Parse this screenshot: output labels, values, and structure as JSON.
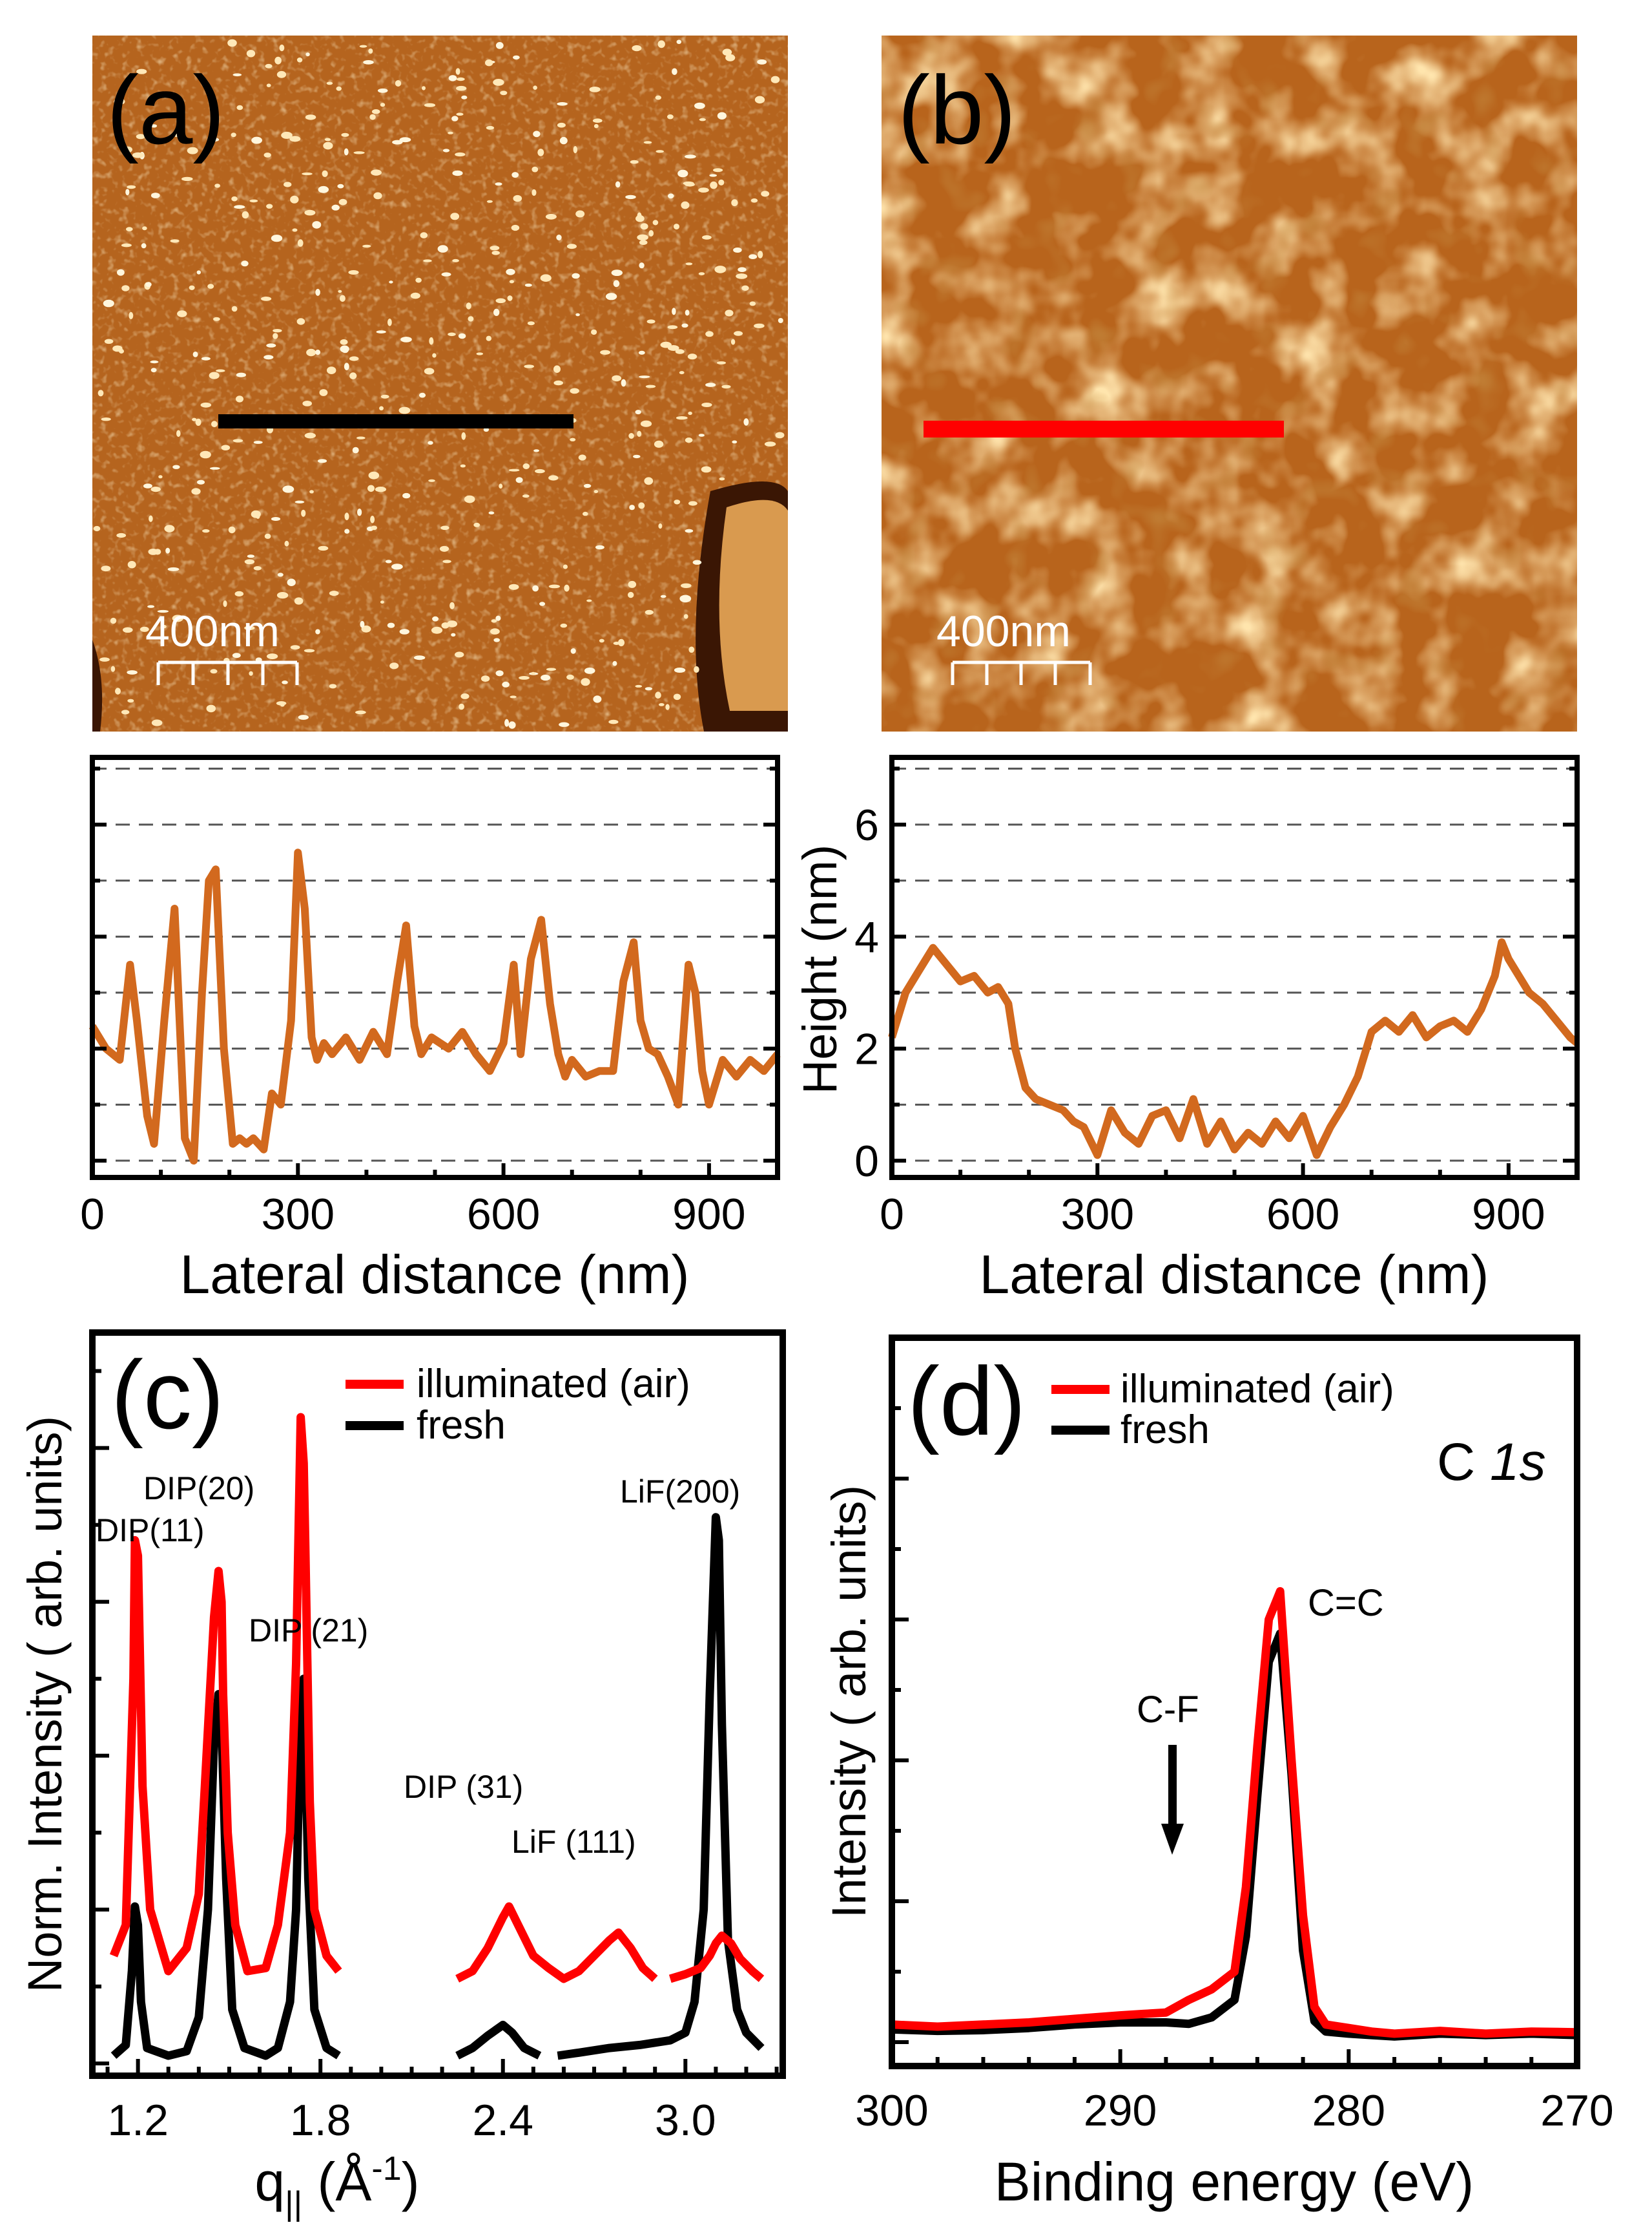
{
  "figure": {
    "panel_labels": {
      "a": "(a)",
      "b": "(b)",
      "c": "(c)",
      "d": "(d)"
    },
    "colors": {
      "profile": "#d2691e",
      "illuminated": "#ff0000",
      "fresh": "#000000",
      "grid": "#555555"
    }
  },
  "chart_data": [
    {
      "id": "a",
      "type": "image",
      "scale_bar_label": "400nm",
      "line_color": "#000000"
    },
    {
      "id": "b",
      "type": "image",
      "scale_bar_label": "400nm",
      "line_color": "#ff0000"
    },
    {
      "id": "profile_a",
      "type": "line",
      "xlabel": "Lateral distance (nm)",
      "ylabel": "",
      "xlim": [
        0,
        1000
      ],
      "ylim": [
        -0.3,
        7.2
      ],
      "xticks": [
        0,
        300,
        600,
        900
      ],
      "yticks": [],
      "grid_y": [
        0,
        1,
        2,
        3,
        4,
        5,
        6,
        7
      ],
      "series": [
        {
          "color": "#d2691e",
          "x": [
            0,
            20,
            40,
            55,
            65,
            80,
            90,
            105,
            120,
            135,
            148,
            160,
            170,
            180,
            192,
            205,
            215,
            225,
            235,
            250,
            262,
            275,
            290,
            300,
            310,
            320,
            328,
            338,
            350,
            370,
            390,
            410,
            430,
            445,
            458,
            470,
            480,
            495,
            520,
            540,
            560,
            580,
            600,
            615,
            625,
            640,
            655,
            668,
            680,
            690,
            700,
            720,
            740,
            760,
            775,
            790,
            800,
            812,
            825,
            840,
            855,
            870,
            880,
            890,
            900,
            920,
            940,
            960,
            980,
            1000
          ],
          "y": [
            2.4,
            2.0,
            1.8,
            3.5,
            2.5,
            0.8,
            0.3,
            2.5,
            4.5,
            0.4,
            0.0,
            3.0,
            5.0,
            5.2,
            2.0,
            0.3,
            0.4,
            0.3,
            0.4,
            0.2,
            1.2,
            1.0,
            2.5,
            5.5,
            4.5,
            2.2,
            1.8,
            2.1,
            1.9,
            2.2,
            1.8,
            2.3,
            1.9,
            3.2,
            4.2,
            2.4,
            1.9,
            2.2,
            2.0,
            2.3,
            1.9,
            1.6,
            2.1,
            3.5,
            1.9,
            3.6,
            4.3,
            2.8,
            1.9,
            1.5,
            1.8,
            1.5,
            1.6,
            1.6,
            3.2,
            3.9,
            2.5,
            2.0,
            1.9,
            1.5,
            1.0,
            3.5,
            3.0,
            1.6,
            1.0,
            1.8,
            1.5,
            1.8,
            1.6,
            1.9
          ]
        }
      ]
    },
    {
      "id": "profile_b",
      "type": "line",
      "xlabel": "Lateral distance (nm)",
      "ylabel": "Height (nm)",
      "xlim": [
        0,
        1000
      ],
      "ylim": [
        -0.3,
        7.2
      ],
      "xticks": [
        0,
        300,
        600,
        900
      ],
      "yticks": [
        0,
        2,
        4,
        6
      ],
      "grid_y": [
        0,
        1,
        2,
        3,
        4,
        5,
        6,
        7
      ],
      "series": [
        {
          "color": "#d2691e",
          "x": [
            0,
            20,
            40,
            60,
            80,
            100,
            120,
            140,
            155,
            170,
            180,
            195,
            210,
            230,
            250,
            265,
            280,
            300,
            320,
            340,
            360,
            380,
            400,
            420,
            440,
            460,
            480,
            500,
            520,
            540,
            560,
            580,
            600,
            620,
            640,
            660,
            680,
            700,
            720,
            740,
            760,
            780,
            800,
            820,
            840,
            860,
            880,
            890,
            900,
            915,
            930,
            950,
            970,
            990,
            1000
          ],
          "y": [
            2.2,
            3.0,
            3.4,
            3.8,
            3.5,
            3.2,
            3.3,
            3.0,
            3.1,
            2.8,
            2.0,
            1.3,
            1.1,
            1.0,
            0.9,
            0.7,
            0.6,
            0.1,
            0.9,
            0.5,
            0.3,
            0.8,
            0.9,
            0.4,
            1.1,
            0.3,
            0.7,
            0.2,
            0.5,
            0.3,
            0.7,
            0.4,
            0.8,
            0.1,
            0.6,
            1.0,
            1.5,
            2.3,
            2.5,
            2.3,
            2.6,
            2.2,
            2.4,
            2.5,
            2.3,
            2.7,
            3.3,
            3.9,
            3.6,
            3.3,
            3.0,
            2.8,
            2.5,
            2.2,
            2.1
          ]
        }
      ]
    },
    {
      "id": "c",
      "type": "line",
      "xlabel": "q",
      "xlabel_sub": "||",
      "xlabel_tail": " (Å",
      "xlabel_sup": "-1",
      "xlabel_end": ")",
      "ylabel": "Norm. Intensity ( arb. units)",
      "xlim": [
        1.05,
        3.32
      ],
      "ylim": [
        -0.08,
        4.75
      ],
      "xticks": [
        1.2,
        1.8,
        2.4,
        3.0
      ],
      "legend": [
        "illuminated (air)",
        "fresh"
      ],
      "annotations": [
        "DIP(11)",
        "DIP(20)",
        "DIP (21)",
        "DIP (31)",
        "LiF (111)",
        "LiF(200)"
      ],
      "series": [
        {
          "name": "illuminated (air)",
          "color": "#ff0000",
          "segments": [
            {
              "x": [
                1.12,
                1.16,
                1.185,
                1.19,
                1.2,
                1.215,
                1.24,
                1.3,
                1.36,
                1.4,
                1.42,
                1.45,
                1.465,
                1.475,
                1.48,
                1.495,
                1.52,
                1.56,
                1.62,
                1.66,
                1.7,
                1.72,
                1.735,
                1.745,
                1.75,
                1.765,
                1.78,
                1.82,
                1.86
              ],
              "y": [
                0.7,
                0.9,
                2.5,
                3.4,
                3.3,
                1.8,
                1.0,
                0.6,
                0.75,
                1.1,
                1.8,
                2.9,
                3.2,
                3.0,
                2.4,
                1.5,
                0.9,
                0.6,
                0.62,
                0.9,
                1.5,
                2.6,
                4.2,
                3.9,
                3.4,
                1.7,
                1.0,
                0.7,
                0.6
              ]
            },
            {
              "x": [
                2.25,
                2.3,
                2.35,
                2.4,
                2.42,
                2.45,
                2.5,
                2.55,
                2.6,
                2.65,
                2.7,
                2.75,
                2.78,
                2.82,
                2.86,
                2.9
              ],
              "y": [
                0.55,
                0.6,
                0.75,
                0.95,
                1.02,
                0.9,
                0.7,
                0.62,
                0.55,
                0.6,
                0.7,
                0.8,
                0.85,
                0.75,
                0.62,
                0.55
              ]
            },
            {
              "x": [
                2.95,
                3.0,
                3.05,
                3.08,
                3.1,
                3.12,
                3.15,
                3.18,
                3.22,
                3.25
              ],
              "y": [
                0.55,
                0.58,
                0.62,
                0.7,
                0.78,
                0.83,
                0.78,
                0.68,
                0.6,
                0.55
              ]
            }
          ]
        },
        {
          "name": "fresh",
          "color": "#000000",
          "segments": [
            {
              "x": [
                1.12,
                1.16,
                1.18,
                1.19,
                1.2,
                1.21,
                1.23,
                1.3,
                1.36,
                1.4,
                1.43,
                1.45,
                1.465,
                1.475,
                1.49,
                1.51,
                1.55,
                1.62,
                1.66,
                1.7,
                1.72,
                1.735,
                1.745,
                1.76,
                1.78,
                1.82,
                1.86
              ],
              "y": [
                0.05,
                0.12,
                0.6,
                1.02,
                0.9,
                0.4,
                0.1,
                0.05,
                0.08,
                0.3,
                1.0,
                2.1,
                2.4,
                2.2,
                1.2,
                0.35,
                0.1,
                0.05,
                0.1,
                0.4,
                1.0,
                2.3,
                2.5,
                1.2,
                0.35,
                0.1,
                0.05
              ]
            },
            {
              "x": [
                2.25,
                2.3,
                2.35,
                2.4,
                2.43,
                2.47,
                2.52
              ],
              "y": [
                0.05,
                0.1,
                0.18,
                0.25,
                0.2,
                0.1,
                0.05
              ]
            },
            {
              "x": [
                2.58,
                2.65,
                2.75,
                2.85,
                2.95,
                3.0,
                3.03,
                3.06,
                3.08,
                3.1,
                3.11,
                3.12,
                3.14,
                3.17,
                3.2,
                3.25
              ],
              "y": [
                0.05,
                0.07,
                0.1,
                0.12,
                0.15,
                0.2,
                0.4,
                1.0,
                2.4,
                3.55,
                3.4,
                2.2,
                0.8,
                0.35,
                0.2,
                0.1
              ]
            }
          ]
        }
      ]
    },
    {
      "id": "d",
      "type": "line",
      "xlabel": "Binding energy (eV)",
      "ylabel": "Intensity ( arb. units)",
      "xlim": [
        300,
        270
      ],
      "ylim": [
        0,
        10
      ],
      "xticks": [
        300,
        290,
        280,
        270
      ],
      "legend": [
        "illuminated (air)",
        "fresh"
      ],
      "inset_label": "C ",
      "inset_label_italic": "1s",
      "annotations": [
        "C=C",
        "C-F"
      ],
      "series": [
        {
          "name": "illuminated (air)",
          "color": "#ff0000",
          "x": [
            300,
            298,
            296,
            294,
            292,
            290,
            289,
            288,
            287,
            286,
            285,
            284.5,
            284,
            283.5,
            283,
            282.5,
            282,
            281.5,
            281,
            280,
            279,
            278,
            276,
            274,
            272,
            270
          ],
          "y": [
            0.25,
            0.22,
            0.25,
            0.28,
            0.33,
            0.38,
            0.4,
            0.42,
            0.6,
            0.75,
            1.0,
            2.2,
            4.2,
            6.0,
            6.4,
            4.0,
            1.8,
            0.5,
            0.25,
            0.2,
            0.15,
            0.12,
            0.16,
            0.12,
            0.15,
            0.14
          ]
        },
        {
          "name": "fresh",
          "color": "#000000",
          "x": [
            300,
            298,
            296,
            294,
            292,
            290,
            288,
            287,
            286,
            285,
            284.5,
            284,
            283.5,
            283,
            282.5,
            282,
            281.5,
            281,
            280,
            279,
            278,
            276,
            274,
            272,
            270
          ],
          "y": [
            0.18,
            0.16,
            0.17,
            0.2,
            0.25,
            0.28,
            0.28,
            0.26,
            0.35,
            0.6,
            1.5,
            3.5,
            5.4,
            5.8,
            3.8,
            1.3,
            0.3,
            0.15,
            0.12,
            0.1,
            0.08,
            0.12,
            0.1,
            0.12,
            0.1
          ]
        }
      ]
    }
  ]
}
